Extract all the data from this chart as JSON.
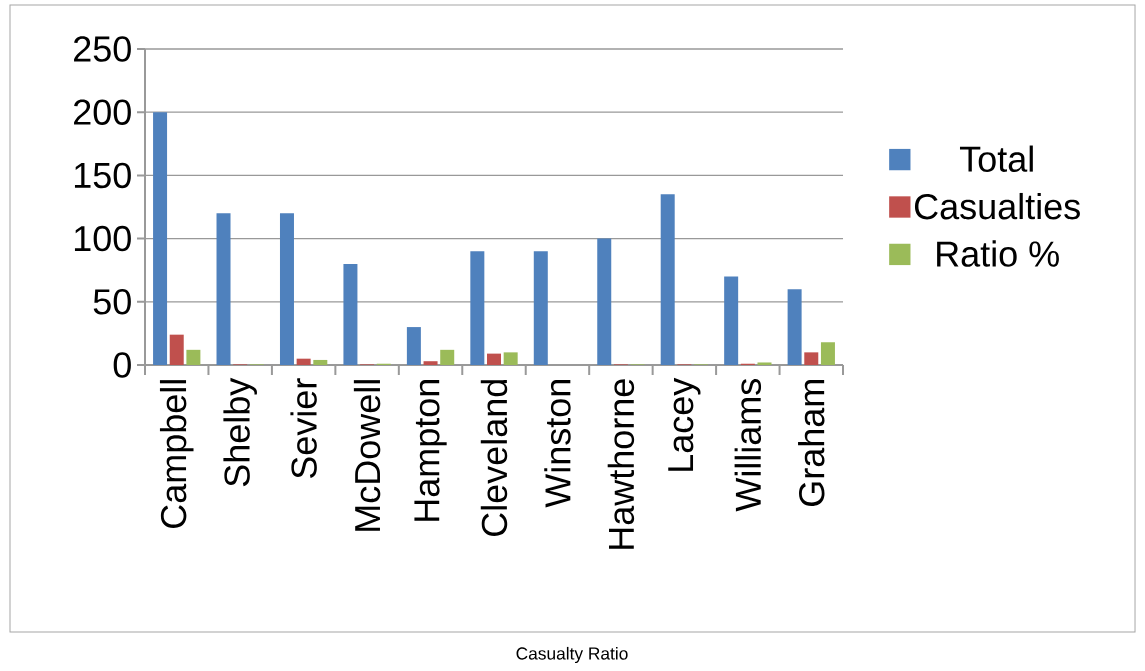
{
  "chart_data": {
    "type": "bar",
    "categories": [
      "Campbell",
      "Shelby",
      "Sevier",
      "McDowell",
      "Hampton",
      "Cleveland",
      "Winston",
      "Hawthorne",
      "Lacey",
      "Williams",
      "Graham"
    ],
    "series": [
      {
        "name": "Total",
        "color": "#4f81bd",
        "values": [
          200,
          120,
          120,
          80,
          30,
          90,
          90,
          100,
          135,
          70,
          60
        ]
      },
      {
        "name": "Casualties",
        "color": "#c0504d",
        "values": [
          24,
          0.5,
          5,
          0.5,
          3,
          9,
          0,
          0.5,
          0.5,
          1,
          10
        ]
      },
      {
        "name": "Ratio %",
        "color": "#9bbb59",
        "values": [
          12,
          0.5,
          4,
          1,
          12,
          10,
          0,
          0.5,
          0.5,
          2,
          18
        ]
      }
    ],
    "ylim": [
      0,
      250
    ],
    "yticks": [
      0,
      50,
      100,
      150,
      200,
      250
    ],
    "grid": "y",
    "legend": "right",
    "annotations": [
      "Casualty Ratio"
    ]
  }
}
